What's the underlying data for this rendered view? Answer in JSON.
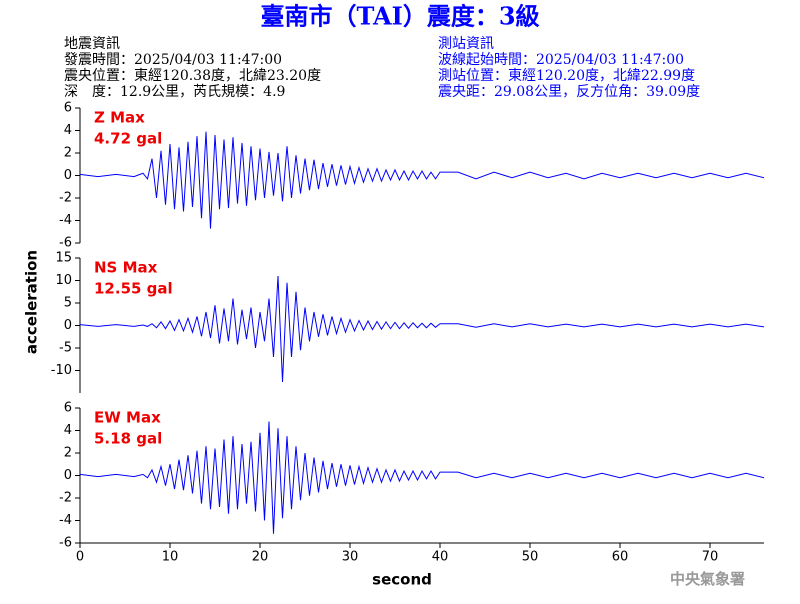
{
  "title": "臺南市（TAI）震度：3級",
  "header": {
    "left": [
      "地震資訊",
      "發震時間：2025/04/03 11:47:00",
      "震央位置：東經120.38度，北緯23.20度",
      "深　度：12.9公里，芮氏規模：4.9"
    ],
    "right": [
      "測站資訊",
      "波線起始時間：2025/04/03 11:47:00",
      "測站位置：東經120.20度，北緯22.99度",
      "震央距：29.08公里，反方位角：39.09度"
    ]
  },
  "ylabel": "acceleration",
  "footer": "中央氣象署",
  "chart_data": [
    {
      "type": "line",
      "annotation": [
        "Z Max",
        "4.72 gal"
      ],
      "x": [
        0,
        2,
        4,
        6,
        7,
        7.5,
        8,
        8.5,
        9,
        9.5,
        10,
        10.5,
        11,
        11.5,
        12,
        12.5,
        13,
        13.5,
        14,
        14.5,
        15,
        15.5,
        16,
        16.5,
        17,
        17.5,
        18,
        18.5,
        19,
        19.5,
        20,
        20.5,
        21,
        21.5,
        22,
        22.5,
        23,
        23.5,
        24,
        24.5,
        25,
        25.5,
        26,
        26.5,
        27,
        27.5,
        28,
        28.5,
        29,
        29.5,
        30,
        30.5,
        31,
        31.5,
        32,
        32.5,
        33,
        33.5,
        34,
        34.5,
        35,
        35.5,
        36,
        36.5,
        37,
        37.5,
        38,
        38.5,
        39,
        39.5,
        40,
        42,
        44,
        46,
        48,
        50,
        52,
        54,
        56,
        58,
        60,
        62,
        64,
        66,
        68,
        70,
        72,
        74,
        76
      ],
      "series": [
        {
          "color": "#0000ff",
          "values": [
            0.1,
            -0.1,
            0.1,
            -0.1,
            0.2,
            -0.3,
            1.5,
            -2.0,
            2.2,
            -2.6,
            2.8,
            -3.0,
            2.5,
            -3.2,
            3.0,
            -2.8,
            3.5,
            -3.8,
            3.9,
            -4.72,
            3.6,
            -3.0,
            3.2,
            -2.9,
            3.4,
            -2.5,
            2.9,
            -2.7,
            2.6,
            -2.2,
            2.4,
            -2.0,
            2.1,
            -1.8,
            2.0,
            -2.3,
            2.6,
            -2.0,
            1.8,
            -1.6,
            1.5,
            -1.3,
            1.4,
            -1.2,
            1.1,
            -1.0,
            1.0,
            -0.9,
            0.9,
            -0.8,
            0.8,
            -0.7,
            0.7,
            -0.6,
            0.6,
            -0.5,
            0.6,
            -0.5,
            0.5,
            -0.4,
            0.5,
            -0.4,
            0.4,
            -0.4,
            0.4,
            -0.3,
            0.4,
            -0.3,
            0.3,
            -0.3,
            0.3,
            0.3,
            -0.3,
            0.3,
            -0.2,
            0.3,
            -0.2,
            0.2,
            -0.3,
            0.2,
            -0.2,
            0.2,
            -0.2,
            0.2,
            -0.2,
            0.2,
            -0.2,
            0.2,
            -0.2
          ]
        }
      ],
      "xlim": [
        0,
        76
      ],
      "ylim": [
        -6,
        6
      ],
      "yticks": [
        -6,
        -4,
        -2,
        0,
        2,
        4,
        6
      ]
    },
    {
      "type": "line",
      "annotation": [
        "NS Max",
        "12.55 gal"
      ],
      "x": [
        0,
        2,
        4,
        6,
        7,
        7.5,
        8,
        8.5,
        9,
        9.5,
        10,
        10.5,
        11,
        11.5,
        12,
        12.5,
        13,
        13.5,
        14,
        14.5,
        15,
        15.5,
        16,
        16.5,
        17,
        17.5,
        18,
        18.5,
        19,
        19.5,
        20,
        20.5,
        21,
        21.5,
        22,
        22.5,
        23,
        23.5,
        24,
        24.5,
        25,
        25.5,
        26,
        26.5,
        27,
        27.5,
        28,
        28.5,
        29,
        29.5,
        30,
        30.5,
        31,
        31.5,
        32,
        32.5,
        33,
        33.5,
        34,
        34.5,
        35,
        35.5,
        36,
        36.5,
        37,
        37.5,
        38,
        38.5,
        39,
        39.5,
        40,
        42,
        44,
        46,
        48,
        50,
        52,
        54,
        56,
        58,
        60,
        62,
        64,
        66,
        68,
        70,
        72,
        74,
        76
      ],
      "series": [
        {
          "color": "#0000ff",
          "values": [
            0.2,
            -0.2,
            0.2,
            -0.2,
            0.1,
            -0.2,
            0.4,
            -0.5,
            0.8,
            -0.7,
            1.0,
            -1.1,
            1.3,
            -1.2,
            1.6,
            -1.5,
            2.0,
            -2.4,
            3.0,
            -2.8,
            4.5,
            -4.0,
            3.8,
            -3.5,
            6.0,
            -4.2,
            3.5,
            -3.0,
            4.0,
            -5.0,
            3.0,
            -3.5,
            6.0,
            -7.0,
            11.0,
            -12.55,
            9.5,
            -7.0,
            7.5,
            -5.5,
            4.0,
            -3.5,
            3.0,
            -2.5,
            2.5,
            -2.2,
            2.0,
            -1.8,
            1.6,
            -1.5,
            1.3,
            -1.2,
            1.1,
            -1.0,
            1.0,
            -0.9,
            0.9,
            -0.8,
            0.8,
            -0.7,
            0.7,
            -0.7,
            0.6,
            -0.6,
            0.6,
            -0.5,
            0.5,
            -0.5,
            0.5,
            -0.4,
            0.4,
            0.4,
            -0.4,
            0.4,
            -0.3,
            0.4,
            -0.3,
            0.3,
            -0.3,
            0.3,
            -0.3,
            0.3,
            -0.3,
            0.3,
            -0.3,
            0.3,
            -0.3,
            0.3,
            -0.3
          ]
        }
      ],
      "xlim": [
        0,
        76
      ],
      "ylim": [
        -15,
        15
      ],
      "yticks": [
        -10,
        -5,
        0,
        5,
        10,
        15
      ]
    },
    {
      "type": "line",
      "annotation": [
        "EW Max",
        "5.18 gal"
      ],
      "x": [
        0,
        2,
        4,
        6,
        7,
        7.5,
        8,
        8.5,
        9,
        9.5,
        10,
        10.5,
        11,
        11.5,
        12,
        12.5,
        13,
        13.5,
        14,
        14.5,
        15,
        15.5,
        16,
        16.5,
        17,
        17.5,
        18,
        18.5,
        19,
        19.5,
        20,
        20.5,
        21,
        21.5,
        22,
        22.5,
        23,
        23.5,
        24,
        24.5,
        25,
        25.5,
        26,
        26.5,
        27,
        27.5,
        28,
        28.5,
        29,
        29.5,
        30,
        30.5,
        31,
        31.5,
        32,
        32.5,
        33,
        33.5,
        34,
        34.5,
        35,
        35.5,
        36,
        36.5,
        37,
        37.5,
        38,
        38.5,
        39,
        39.5,
        40,
        42,
        44,
        46,
        48,
        50,
        52,
        54,
        56,
        58,
        60,
        62,
        64,
        66,
        68,
        70,
        72,
        74,
        76
      ],
      "series": [
        {
          "color": "#0000ff",
          "values": [
            0.1,
            -0.1,
            0.1,
            -0.1,
            0.1,
            -0.2,
            0.5,
            -0.6,
            0.8,
            -0.9,
            1.0,
            -1.2,
            1.4,
            -1.3,
            1.8,
            -1.6,
            2.2,
            -2.5,
            2.6,
            -3.0,
            2.4,
            -2.8,
            3.2,
            -3.4,
            3.5,
            -3.0,
            2.8,
            -2.5,
            3.0,
            -3.2,
            3.8,
            -4.0,
            4.8,
            -5.18,
            4.2,
            -3.8,
            3.5,
            -3.0,
            2.6,
            -2.2,
            2.0,
            -1.8,
            1.6,
            -1.5,
            1.3,
            -1.2,
            1.1,
            -1.0,
            1.0,
            -0.9,
            0.9,
            -0.8,
            0.8,
            -0.7,
            0.7,
            -0.6,
            0.6,
            -0.6,
            0.5,
            -0.5,
            0.5,
            -0.5,
            0.4,
            -0.4,
            0.4,
            -0.4,
            0.4,
            -0.3,
            0.4,
            -0.3,
            0.3,
            0.3,
            -0.2,
            0.2,
            -0.2,
            0.2,
            -0.2,
            0.2,
            -0.2,
            0.2,
            -0.2,
            0.2,
            -0.2,
            0.2,
            -0.2,
            0.2,
            -0.2,
            0.2,
            -0.2
          ]
        }
      ],
      "xlim": [
        0,
        76
      ],
      "xticks": [
        0,
        10,
        20,
        30,
        40,
        50,
        60,
        70
      ],
      "xlabel": "second",
      "ylim": [
        -6,
        6
      ],
      "yticks": [
        -6,
        -4,
        -2,
        0,
        2,
        4,
        6
      ]
    }
  ]
}
